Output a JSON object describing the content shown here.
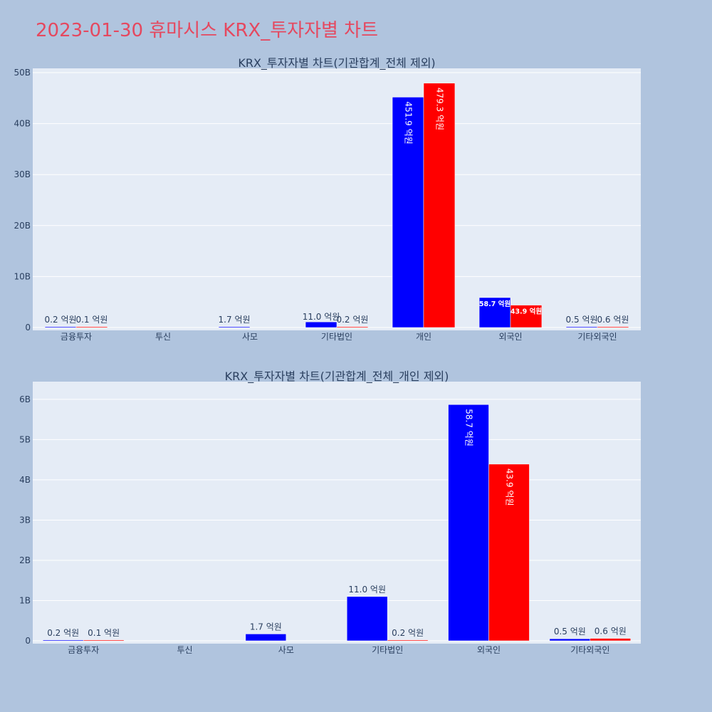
{
  "page": {
    "title": "2023-01-30 휴마시스 KRX_투자자별 차트",
    "background": "#b0c4de",
    "title_color": "#e5485f"
  },
  "chart_data": [
    {
      "type": "bar",
      "title": "KRX_투자자별 차트(기관합계_전체 제외)",
      "categories": [
        "금융투자",
        "투신",
        "사모",
        "기타법인",
        "개인",
        "외국인",
        "기타외국인"
      ],
      "series": [
        {
          "color": "#0000ff",
          "values": [
            20000000,
            0,
            170000000,
            1100000000,
            45190000000,
            5870000000,
            50000000
          ],
          "labels": [
            "0.2 억원",
            "",
            "1.7 억원",
            "11.0 억원",
            "451.9 억원",
            "58.7 억원",
            "0.5 억원"
          ]
        },
        {
          "color": "#ff0000",
          "values": [
            10000000,
            0,
            0,
            20000000,
            47930000000,
            4390000000,
            60000000
          ],
          "labels": [
            "0.1 억원",
            "",
            "",
            "0.2 억원",
            "479.3 억원",
            "43.9 억원",
            "0.6 억원"
          ]
        }
      ],
      "ylim": [
        0,
        50000000000
      ],
      "yticks": [
        0,
        10000000000,
        20000000000,
        30000000000,
        40000000000,
        50000000000
      ],
      "ytick_labels": [
        "0",
        "10B",
        "20B",
        "30B",
        "40B",
        "50B"
      ],
      "grid": true
    },
    {
      "type": "bar",
      "title": "KRX_투자자별 차트(기관합계_전체_개인 제외)",
      "categories": [
        "금융투자",
        "투신",
        "사모",
        "기타법인",
        "외국인",
        "기타외국인"
      ],
      "series": [
        {
          "color": "#0000ff",
          "values": [
            20000000,
            0,
            170000000,
            1100000000,
            5870000000,
            50000000
          ],
          "labels": [
            "0.2 억원",
            "",
            "1.7 억원",
            "11.0 억원",
            "58.7 억원",
            "0.5 억원"
          ]
        },
        {
          "color": "#ff0000",
          "values": [
            10000000,
            0,
            0,
            20000000,
            4390000000,
            60000000
          ],
          "labels": [
            "0.1 억원",
            "",
            "",
            "0.2 억원",
            "43.9 억원",
            "0.6 억원"
          ]
        }
      ],
      "ylim": [
        0,
        6200000000
      ],
      "yticks": [
        0,
        1000000000,
        2000000000,
        3000000000,
        4000000000,
        5000000000,
        6000000000
      ],
      "ytick_labels": [
        "0",
        "1B",
        "2B",
        "3B",
        "4B",
        "5B",
        "6B"
      ],
      "grid": true
    }
  ]
}
